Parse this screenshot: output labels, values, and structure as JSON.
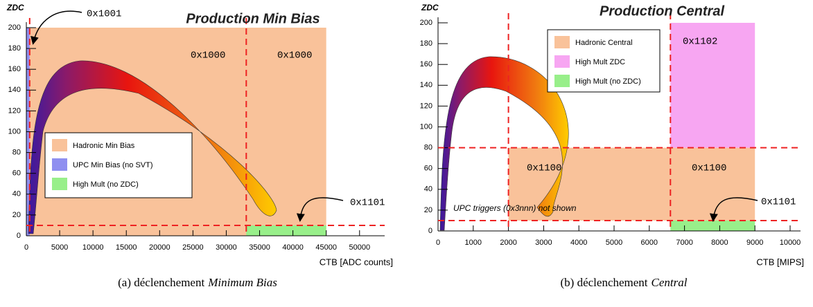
{
  "chart_data": [
    {
      "type": "region",
      "title": "Production Min Bias",
      "y_label": "ZDC",
      "x_label": "CTB [ADC counts]",
      "caption_prefix": "(a) déclenchement",
      "caption_emph": "Minimum Bias",
      "xlim": [
        0,
        52000
      ],
      "ylim": [
        0,
        200
      ],
      "xticks": [
        0,
        5000,
        10000,
        15000,
        20000,
        25000,
        30000,
        35000,
        40000,
        45000,
        50000
      ],
      "yticks": [
        0,
        20,
        40,
        60,
        80,
        100,
        120,
        140,
        160,
        180,
        200
      ],
      "series": [
        {
          "name": "Hadronic Min Bias",
          "color": "#f9c29a"
        },
        {
          "name": "UPC Min Bias (no SVT)",
          "color": "#8f8ff0"
        },
        {
          "name": "High Mult (no ZDC)",
          "color": "#98ef8a"
        }
      ],
      "regions": [
        {
          "series": 0,
          "x": [
            500,
            45000
          ],
          "y": [
            0,
            200
          ]
        },
        {
          "series": 1,
          "x": [
            0,
            500
          ],
          "y": [
            0,
            200
          ]
        },
        {
          "series": 2,
          "x": [
            33000,
            45000
          ],
          "y": [
            0,
            10
          ]
        }
      ],
      "vlines": [
        500,
        33000
      ],
      "hlines": [
        10
      ],
      "labels": [
        "0x1001",
        "0x1000",
        "0x1000",
        "0x1101"
      ]
    },
    {
      "type": "region",
      "title": "Production Central",
      "y_label": "ZDC",
      "x_label": "CTB [MIPS]",
      "caption_prefix": "(b) déclenchement",
      "caption_emph": "Central",
      "xlim": [
        0,
        10000
      ],
      "ylim": [
        0,
        200
      ],
      "xticks": [
        0,
        1000,
        2000,
        3000,
        4000,
        5000,
        6000,
        7000,
        8000,
        9000,
        10000
      ],
      "yticks": [
        0,
        20,
        40,
        60,
        80,
        100,
        120,
        140,
        160,
        180,
        200
      ],
      "series": [
        {
          "name": "Hadronic Central",
          "color": "#f9c29a"
        },
        {
          "name": "High Mult ZDC",
          "color": "#f7a6f2"
        },
        {
          "name": "High Mult (no ZDC)",
          "color": "#98ef8a"
        }
      ],
      "regions": [
        {
          "series": 0,
          "x": [
            2000,
            9000
          ],
          "y": [
            10,
            80
          ]
        },
        {
          "series": 1,
          "x": [
            6600,
            9000
          ],
          "y": [
            80,
            200
          ]
        },
        {
          "series": 2,
          "x": [
            6600,
            9000
          ],
          "y": [
            0,
            10
          ]
        }
      ],
      "vlines": [
        2000,
        6600
      ],
      "hlines": [
        80,
        10
      ],
      "labels": [
        "0x1102",
        "0x1100",
        "0x1100",
        "0x1101"
      ],
      "annotation": "UPC triggers (0x3nnn) not shown"
    }
  ]
}
